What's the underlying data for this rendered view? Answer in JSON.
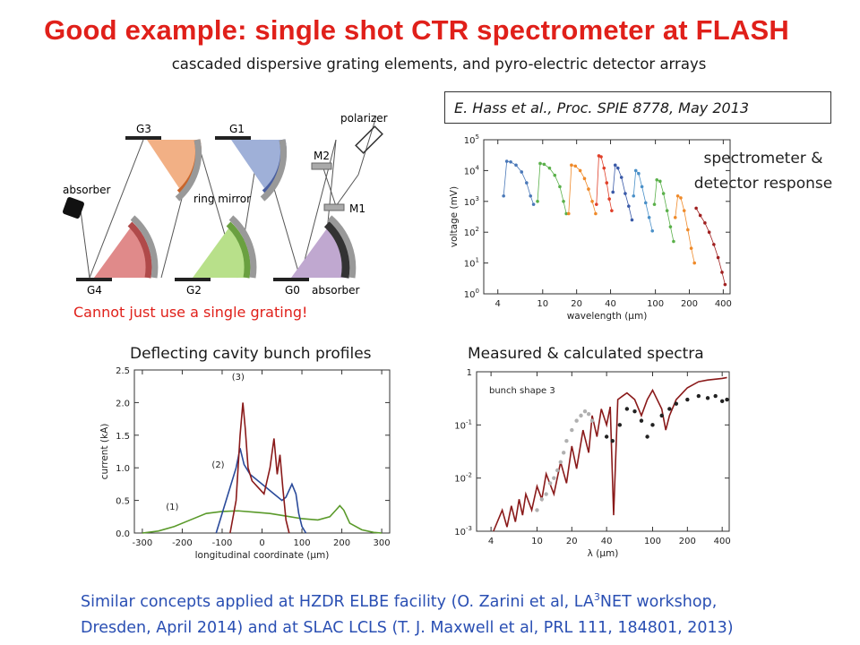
{
  "title": "Good example: single shot CTR spectrometer at FLASH",
  "subtitle": "cascaded dispersive grating elements, and pyro-electric detector arrays",
  "citation": "E. Hass et al.,  Proc. SPIE 8778, May 2013",
  "spectrometer_label": [
    "spectrometer &",
    "detector response"
  ],
  "warning": "Cannot just use a single grating!",
  "label_left": "Deflecting cavity bunch profiles",
  "label_right": "Measured & calculated spectra",
  "footer": {
    "line1_a": "Similar concepts applied at HZDR ELBE facility (O. Zarini et al, LA",
    "line1_sup": "3",
    "line1_b": "NET workshop,",
    "line2": "Dresden, April 2014) and at SLAC LCLS (T. J. Maxwell et al, PRL 111, 184801, 2013)"
  },
  "diagram": {
    "labels": {
      "g3": "G3",
      "g1": "G1",
      "g4": "G4",
      "g2": "G2",
      "g0": "G0",
      "absorber_left": "absorber",
      "absorber_right": "absorber",
      "ring_mirror": "ring mirror",
      "polarizer": "polarizer",
      "m1": "M1",
      "m2": "M2"
    }
  },
  "chart_data": [
    {
      "type": "scatter",
      "ylabel": "voltage (mV)",
      "xlabel": "wavelength (µm)",
      "x_log": true,
      "y_log": true,
      "xlim": [
        3,
        460
      ],
      "ylim": [
        1,
        100000
      ],
      "xticks": [
        4,
        10,
        20,
        40,
        100,
        200,
        400
      ],
      "yticks": [
        1,
        10,
        100,
        1000,
        10000,
        100000
      ],
      "ytick_labels": [
        "10^0",
        "10^1",
        "10^2",
        "10^3",
        "10^4",
        "10^5"
      ],
      "series": [
        {
          "color": "#4a78b8",
          "x": [
            4.5,
            4.8,
            5.2,
            5.8,
            6.5,
            7.2,
            7.8,
            8.3
          ],
          "y": [
            1500,
            20000,
            19000,
            15000,
            9000,
            4000,
            1500,
            800
          ]
        },
        {
          "color": "#5ab04a",
          "x": [
            9.0,
            9.5,
            10.3,
            11.5,
            12.8,
            14.2,
            15.3,
            16.2
          ],
          "y": [
            1000,
            17000,
            16000,
            12000,
            7000,
            3000,
            1000,
            400
          ]
        },
        {
          "color": "#ef8a2a",
          "x": [
            17,
            18,
            19.5,
            21.5,
            23.5,
            25.5,
            27.5,
            29.5
          ],
          "y": [
            400,
            15000,
            14000,
            10000,
            5500,
            2500,
            1000,
            400
          ]
        },
        {
          "color": "#e0402a",
          "x": [
            30,
            31.5,
            33,
            35,
            37,
            39,
            41
          ],
          "y": [
            800,
            30000,
            28000,
            12000,
            4000,
            1200,
            500
          ]
        },
        {
          "color": "#3a5aa8",
          "x": [
            42,
            44,
            46.5,
            50,
            54,
            58,
            62
          ],
          "y": [
            2000,
            15000,
            12000,
            6000,
            1800,
            700,
            250
          ]
        },
        {
          "color": "#4a90c8",
          "x": [
            64,
            67,
            71,
            76,
            82,
            88,
            94
          ],
          "y": [
            1500,
            10000,
            8000,
            3000,
            900,
            300,
            110
          ]
        },
        {
          "color": "#5ab04a",
          "x": [
            98,
            103,
            110,
            118,
            127,
            136,
            145
          ],
          "y": [
            800,
            5000,
            4500,
            1800,
            500,
            150,
            50
          ]
        },
        {
          "color": "#ef8a2a",
          "x": [
            150,
            158,
            168,
            180,
            194,
            208,
            222
          ],
          "y": [
            300,
            1500,
            1300,
            500,
            120,
            30,
            10
          ]
        },
        {
          "color": "#a02020",
          "x": [
            230,
            250,
            275,
            300,
            330,
            360,
            390,
            415
          ],
          "y": [
            600,
            350,
            200,
            100,
            40,
            15,
            5,
            2
          ]
        }
      ]
    },
    {
      "type": "line",
      "ylabel": "current (kA)",
      "xlabel": "longitudinal coordinate (µm)",
      "xlim": [
        -320,
        320
      ],
      "ylim": [
        0,
        2.5
      ],
      "xticks": [
        -300,
        -200,
        -100,
        0,
        100,
        200,
        300
      ],
      "yticks": [
        0.0,
        0.5,
        1.0,
        1.5,
        2.0,
        2.5
      ],
      "ytick_labels": [
        "0.0",
        "0.5",
        "1.0",
        "1.5",
        "2.0",
        "2.5"
      ],
      "annotations": [
        {
          "text": "(3)",
          "x": -60,
          "y": 2.35
        },
        {
          "text": "(2)",
          "x": -110,
          "y": 1.0
        },
        {
          "text": "(1)",
          "x": -225,
          "y": 0.36
        }
      ],
      "series": [
        {
          "name": "(1)",
          "color": "#5a9a2a",
          "x": [
            -300,
            -260,
            -220,
            -180,
            -140,
            -100,
            -60,
            -20,
            20,
            60,
            100,
            140,
            170,
            185,
            195,
            205,
            220,
            250,
            280,
            300
          ],
          "y": [
            0.0,
            0.03,
            0.1,
            0.2,
            0.3,
            0.33,
            0.34,
            0.32,
            0.3,
            0.26,
            0.22,
            0.2,
            0.25,
            0.35,
            0.42,
            0.35,
            0.15,
            0.05,
            0.01,
            0.0
          ]
        },
        {
          "name": "(2)",
          "color": "#2a4a9a",
          "x": [
            -115,
            -100,
            -80,
            -65,
            -55,
            -45,
            -30,
            -10,
            10,
            30,
            50,
            60,
            75,
            85,
            92,
            100,
            110
          ],
          "y": [
            0.0,
            0.3,
            0.7,
            1.0,
            1.3,
            1.05,
            0.9,
            0.8,
            0.7,
            0.6,
            0.5,
            0.55,
            0.75,
            0.6,
            0.3,
            0.1,
            0.0
          ]
        },
        {
          "name": "(3)",
          "color": "#8a1a1a",
          "x": [
            -80,
            -65,
            -55,
            -48,
            -42,
            -35,
            -25,
            -10,
            5,
            20,
            30,
            38,
            45,
            52,
            60,
            68
          ],
          "y": [
            0.0,
            0.5,
            1.5,
            2.0,
            1.6,
            1.0,
            0.8,
            0.7,
            0.6,
            1.0,
            1.45,
            0.9,
            1.2,
            0.7,
            0.2,
            0.0
          ]
        }
      ]
    },
    {
      "type": "line",
      "xlabel": "λ (µm)",
      "x_log": true,
      "y_log": true,
      "xlim": [
        3,
        460
      ],
      "ylim": [
        0.001,
        1
      ],
      "xticks": [
        4,
        10,
        20,
        40,
        100,
        200,
        400
      ],
      "yticks": [
        0.001,
        0.01,
        0.1,
        1
      ],
      "ytick_labels": [
        "10^-3",
        "10^-2",
        "10^-1",
        "1"
      ],
      "legend_text": "bunch shape 3",
      "series": [
        {
          "color": "#8a1a1a",
          "x": [
            4.2,
            5,
            5.5,
            6,
            6.5,
            7,
            7.5,
            8,
            9,
            10,
            11,
            12,
            14,
            16,
            18,
            20,
            22,
            25,
            28,
            30,
            33,
            36,
            40,
            43,
            46,
            50,
            55,
            60,
            70,
            80,
            90,
            100,
            120,
            130,
            140,
            160,
            200,
            250,
            300,
            400,
            440
          ],
          "y": [
            0.001,
            0.0025,
            0.0012,
            0.003,
            0.0015,
            0.004,
            0.002,
            0.005,
            0.0025,
            0.007,
            0.004,
            0.012,
            0.005,
            0.02,
            0.008,
            0.04,
            0.015,
            0.08,
            0.03,
            0.15,
            0.06,
            0.2,
            0.1,
            0.22,
            0.002,
            0.3,
            0.35,
            0.4,
            0.3,
            0.15,
            0.3,
            0.45,
            0.2,
            0.08,
            0.15,
            0.3,
            0.5,
            0.65,
            0.7,
            0.75,
            0.78
          ]
        },
        {
          "color": "#b0b0b0",
          "x": [
            10,
            11,
            12,
            13,
            14,
            15,
            16,
            17,
            18,
            20,
            22,
            24,
            26,
            28,
            30
          ],
          "y": [
            0.0025,
            0.004,
            0.005,
            0.008,
            0.01,
            0.014,
            0.02,
            0.03,
            0.05,
            0.08,
            0.12,
            0.15,
            0.18,
            0.16,
            0.12
          ]
        },
        {
          "color": "#222222",
          "x": [
            40,
            45,
            52,
            60,
            70,
            80,
            90,
            100,
            120,
            140,
            160,
            200,
            250,
            300,
            350,
            400,
            440
          ],
          "y": [
            0.06,
            0.05,
            0.1,
            0.2,
            0.18,
            0.12,
            0.06,
            0.1,
            0.15,
            0.2,
            0.25,
            0.3,
            0.35,
            0.32,
            0.35,
            0.28,
            0.3
          ]
        }
      ]
    }
  ]
}
